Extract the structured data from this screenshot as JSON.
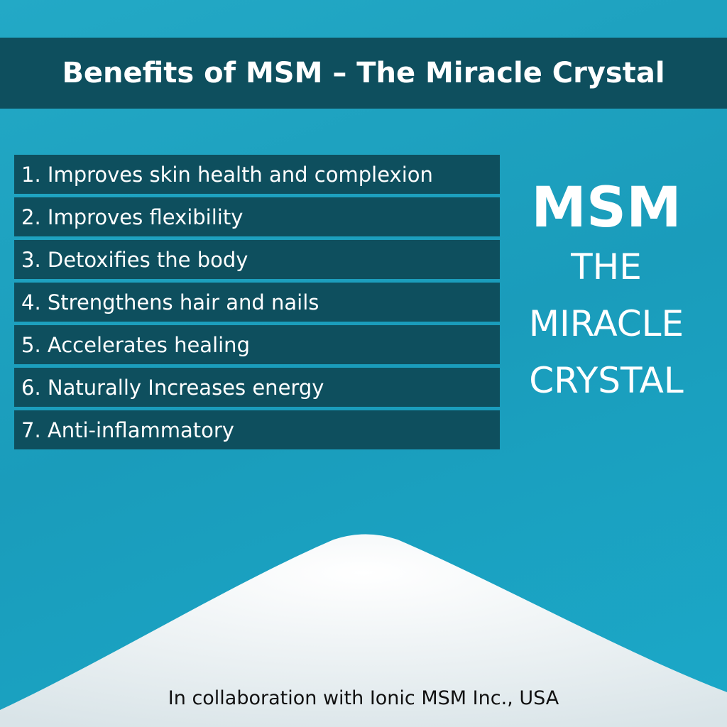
{
  "header": {
    "title": "Benefits of MSM – The Miracle Crystal"
  },
  "benefits": [
    "1. Improves skin health and complexion",
    "2. Improves flexibility",
    "3. Detoxifies the body",
    "4. Strengthens hair and nails",
    "5. Accelerates healing",
    "6. Naturally Increases energy",
    "7. Anti-inflammatory"
  ],
  "side": {
    "brand": "MSM",
    "lines": [
      "THE",
      "MIRACLE",
      "CRYSTAL"
    ]
  },
  "footer": "In collaboration with Ionic MSM Inc., USA"
}
